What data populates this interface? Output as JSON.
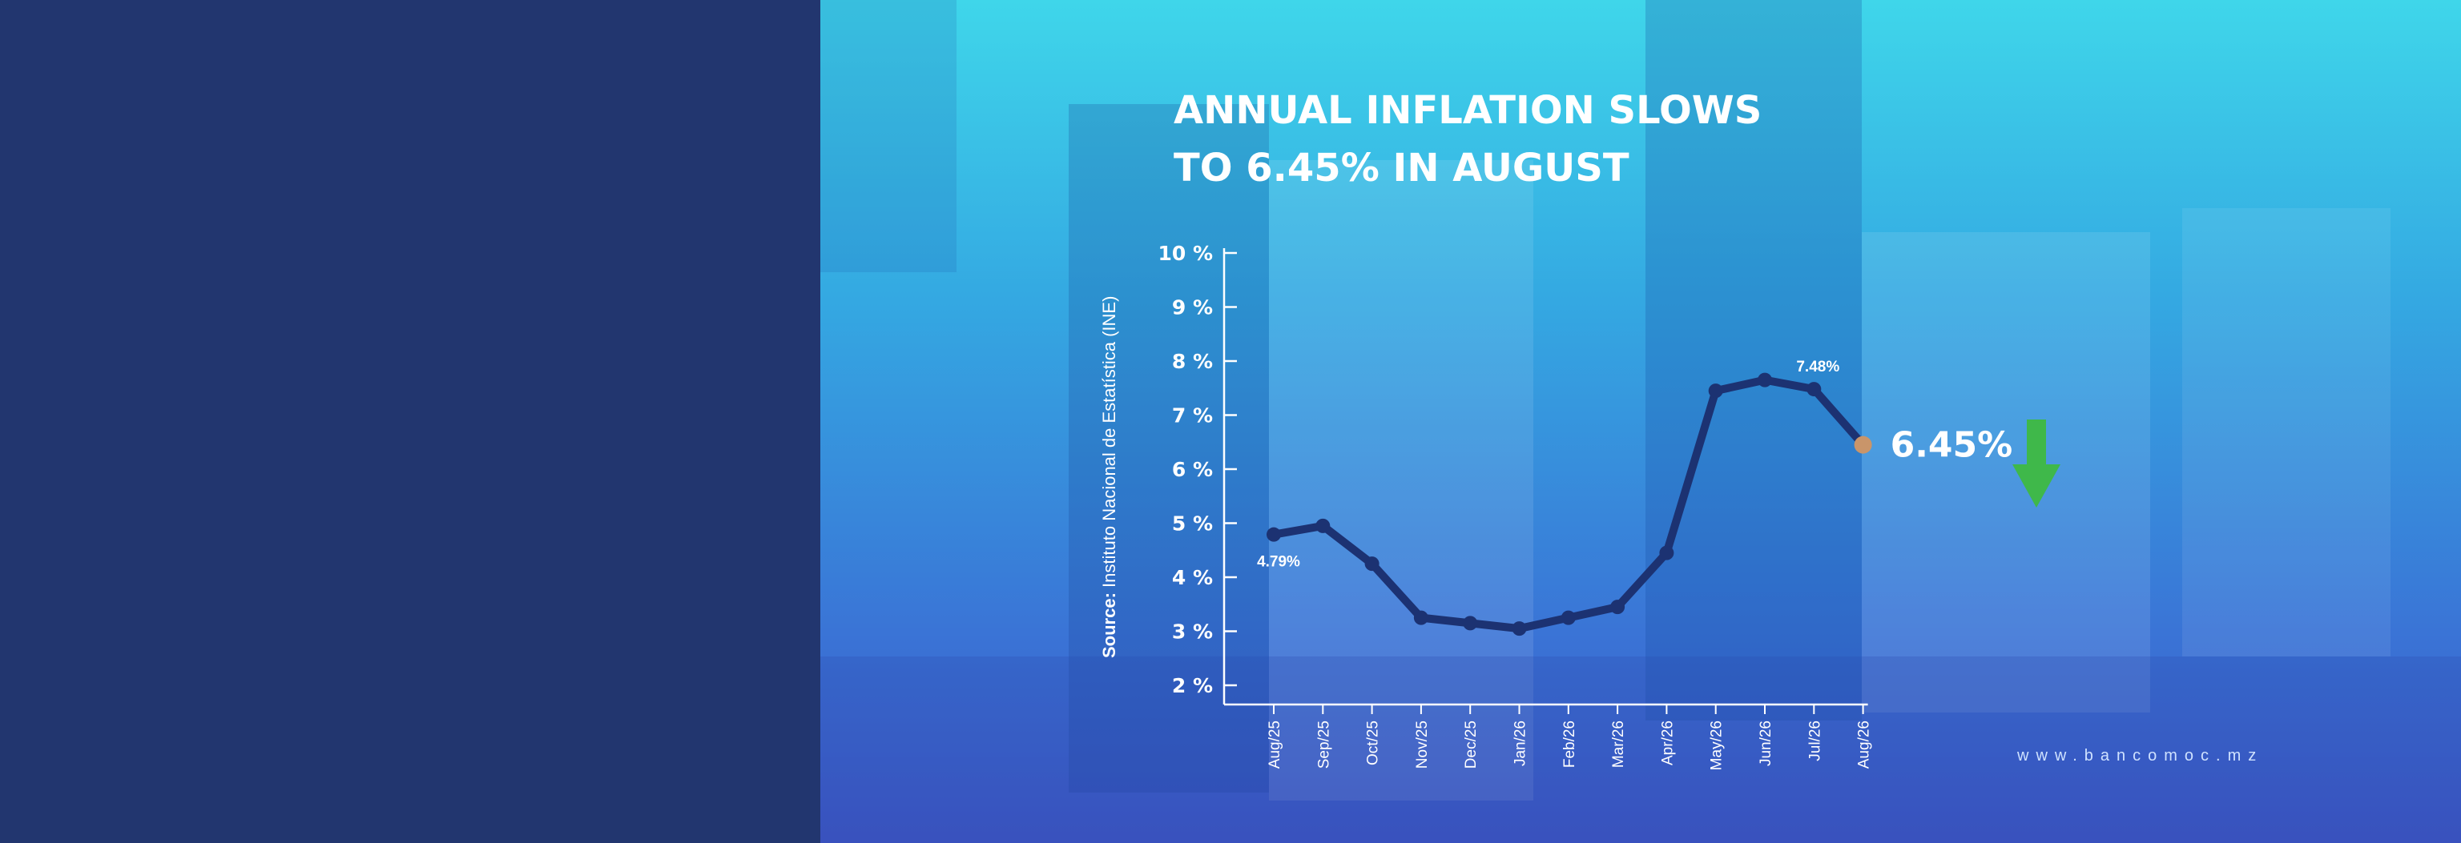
{
  "title_lines": [
    "ANNUAL INFLATION SLOWS",
    "TO 6.45% IN AUGUST"
  ],
  "source": {
    "prefix": "Source:",
    "text": "Instituto Nacional de Estatística (INE)"
  },
  "website": "www.bancomoc.mz",
  "colors": {
    "left_panel": "#22366f",
    "line": "#1c3272",
    "last_point": "#c9956a",
    "arrow": "#3fb84a",
    "text": "#ffffff"
  },
  "icons": {
    "trend": "arrow-down-icon"
  },
  "chart_data": {
    "type": "line",
    "title": "ANNUAL INFLATION SLOWS TO 6.45% IN AUGUST",
    "categories": [
      "Aug/25",
      "Sep/25",
      "Oct/25",
      "Nov/25",
      "Dec/25",
      "Jan/26",
      "Feb/26",
      "Mar/26",
      "Apr/26",
      "May/26",
      "Jun/26",
      "Jul/26",
      "Aug/26"
    ],
    "series": [
      {
        "values": [
          4.79,
          4.95,
          4.25,
          3.25,
          3.15,
          3.05,
          3.25,
          3.45,
          4.45,
          7.45,
          7.65,
          7.48,
          6.45
        ]
      }
    ],
    "ylim": [
      2,
      10
    ],
    "yticks": [
      2,
      3,
      4,
      5,
      6,
      7,
      8,
      9,
      10
    ],
    "ytick_labels": [
      "2 %",
      "3 %",
      "4 %",
      "5 %",
      "6 %",
      "7 %",
      "8 %",
      "9 %",
      "10 %"
    ],
    "annotations": [
      {
        "index": 0,
        "text": "4.79%",
        "position": "below"
      },
      {
        "index": 11,
        "text": "7.48%",
        "position": "above"
      },
      {
        "index": 12,
        "text": "6.45%",
        "position": "right",
        "emphasis": true
      }
    ],
    "grid": false,
    "legend": "none"
  }
}
